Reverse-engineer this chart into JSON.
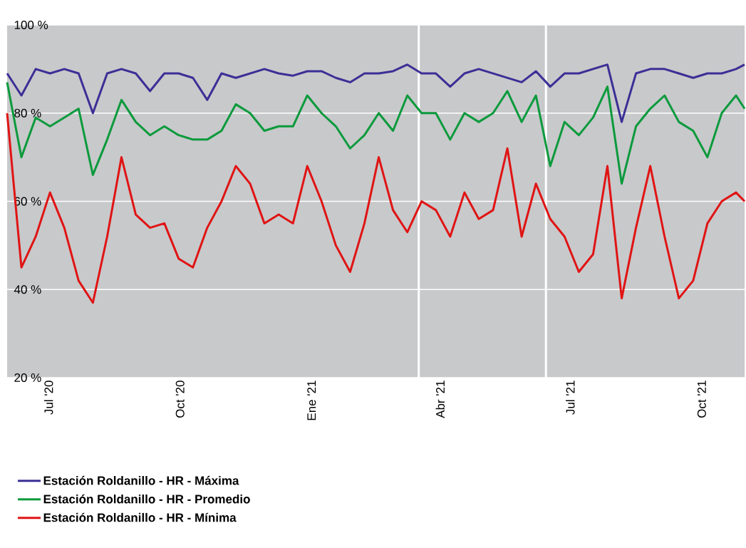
{
  "chart_data": {
    "type": "line",
    "x": [
      "2020-06-02",
      "2020-06-12",
      "2020-06-22",
      "2020-07-02",
      "2020-07-12",
      "2020-07-22",
      "2020-08-01",
      "2020-08-11",
      "2020-08-21",
      "2020-08-31",
      "2020-09-10",
      "2020-09-20",
      "2020-09-30",
      "2020-10-10",
      "2020-10-20",
      "2020-10-30",
      "2020-11-09",
      "2020-11-19",
      "2020-11-29",
      "2020-12-09",
      "2020-12-19",
      "2020-12-29",
      "2021-01-08",
      "2021-01-18",
      "2021-01-28",
      "2021-02-07",
      "2021-02-17",
      "2021-02-27",
      "2021-03-09",
      "2021-03-19",
      "2021-03-29",
      "2021-04-08",
      "2021-04-18",
      "2021-04-28",
      "2021-05-08",
      "2021-05-18",
      "2021-05-28",
      "2021-06-07",
      "2021-06-17",
      "2021-06-27",
      "2021-07-07",
      "2021-07-17",
      "2021-07-27",
      "2021-08-06",
      "2021-08-16",
      "2021-08-26",
      "2021-09-05",
      "2021-09-15",
      "2021-09-25",
      "2021-10-05",
      "2021-10-15",
      "2021-10-25",
      "2021-10-31"
    ],
    "series": [
      {
        "name": "Estación Roldanillo - HR - Máxima",
        "color": "#3b2f96",
        "values": [
          89,
          84,
          90,
          89,
          90,
          89,
          80,
          89,
          90,
          89,
          85,
          89,
          89,
          88,
          83,
          89,
          88,
          89,
          90,
          89,
          88.5,
          89.5,
          89.5,
          88,
          87,
          89,
          89,
          89.5,
          91,
          89,
          89,
          86,
          89,
          90,
          89,
          88,
          87,
          89.5,
          86,
          89,
          89,
          90,
          91,
          78,
          89,
          90,
          90,
          89,
          88,
          89,
          89,
          90,
          91
        ]
      },
      {
        "name": "Estación Roldanillo - HR - Promedio",
        "color": "#0b9a3c",
        "values": [
          87,
          70,
          79,
          77,
          79,
          81,
          66,
          74,
          83,
          78,
          75,
          77,
          75,
          74,
          74,
          76,
          82,
          80,
          76,
          77,
          77,
          84,
          80,
          77,
          72,
          75,
          80,
          76,
          84,
          80,
          80,
          74,
          80,
          78,
          80,
          85,
          78,
          84,
          68,
          78,
          75,
          79,
          86,
          64,
          77,
          81,
          84,
          78,
          76,
          70,
          80,
          84,
          81
        ]
      },
      {
        "name": "Estación Roldanillo - HR - Mínima",
        "color": "#e01414",
        "values": [
          80,
          45,
          52,
          62,
          54,
          42,
          37,
          52,
          70,
          57,
          54,
          55,
          47,
          45,
          54,
          60,
          68,
          64,
          55,
          57,
          55,
          68,
          60,
          50,
          44,
          55,
          70,
          58,
          53,
          60,
          58,
          52,
          62,
          56,
          58,
          72,
          52,
          64,
          56,
          52,
          44,
          48,
          68,
          38,
          54,
          68,
          52,
          38,
          42,
          55,
          60,
          62,
          60
        ]
      }
    ],
    "xlim": [
      "2020-06-02",
      "2021-10-31"
    ],
    "xticks": [
      {
        "value": "2020-07-01",
        "label": "Jul '20"
      },
      {
        "value": "2020-10-01",
        "label": "Oct '20"
      },
      {
        "value": "2021-01-01",
        "label": "Ene '21"
      },
      {
        "value": "2021-04-01",
        "label": "Abr '21"
      },
      {
        "value": "2021-07-01",
        "label": "Jul '21"
      },
      {
        "value": "2021-10-01",
        "label": "Oct '21"
      }
    ],
    "ylim": [
      20,
      100
    ],
    "yticks": [
      {
        "value": 20,
        "label": "20 %"
      },
      {
        "value": 40,
        "label": "40 %"
      },
      {
        "value": 60,
        "label": "60 %"
      },
      {
        "value": 80,
        "label": "80 %"
      },
      {
        "value": 100,
        "label": "100 %"
      }
    ],
    "ref_lines": [
      {
        "axis": "x",
        "value": "2021-03-17",
        "color": "#ffffff"
      },
      {
        "axis": "x",
        "value": "2021-06-14",
        "color": "#ffffff"
      }
    ],
    "grid": "y",
    "legend": "bottom",
    "line_style": "solid"
  }
}
